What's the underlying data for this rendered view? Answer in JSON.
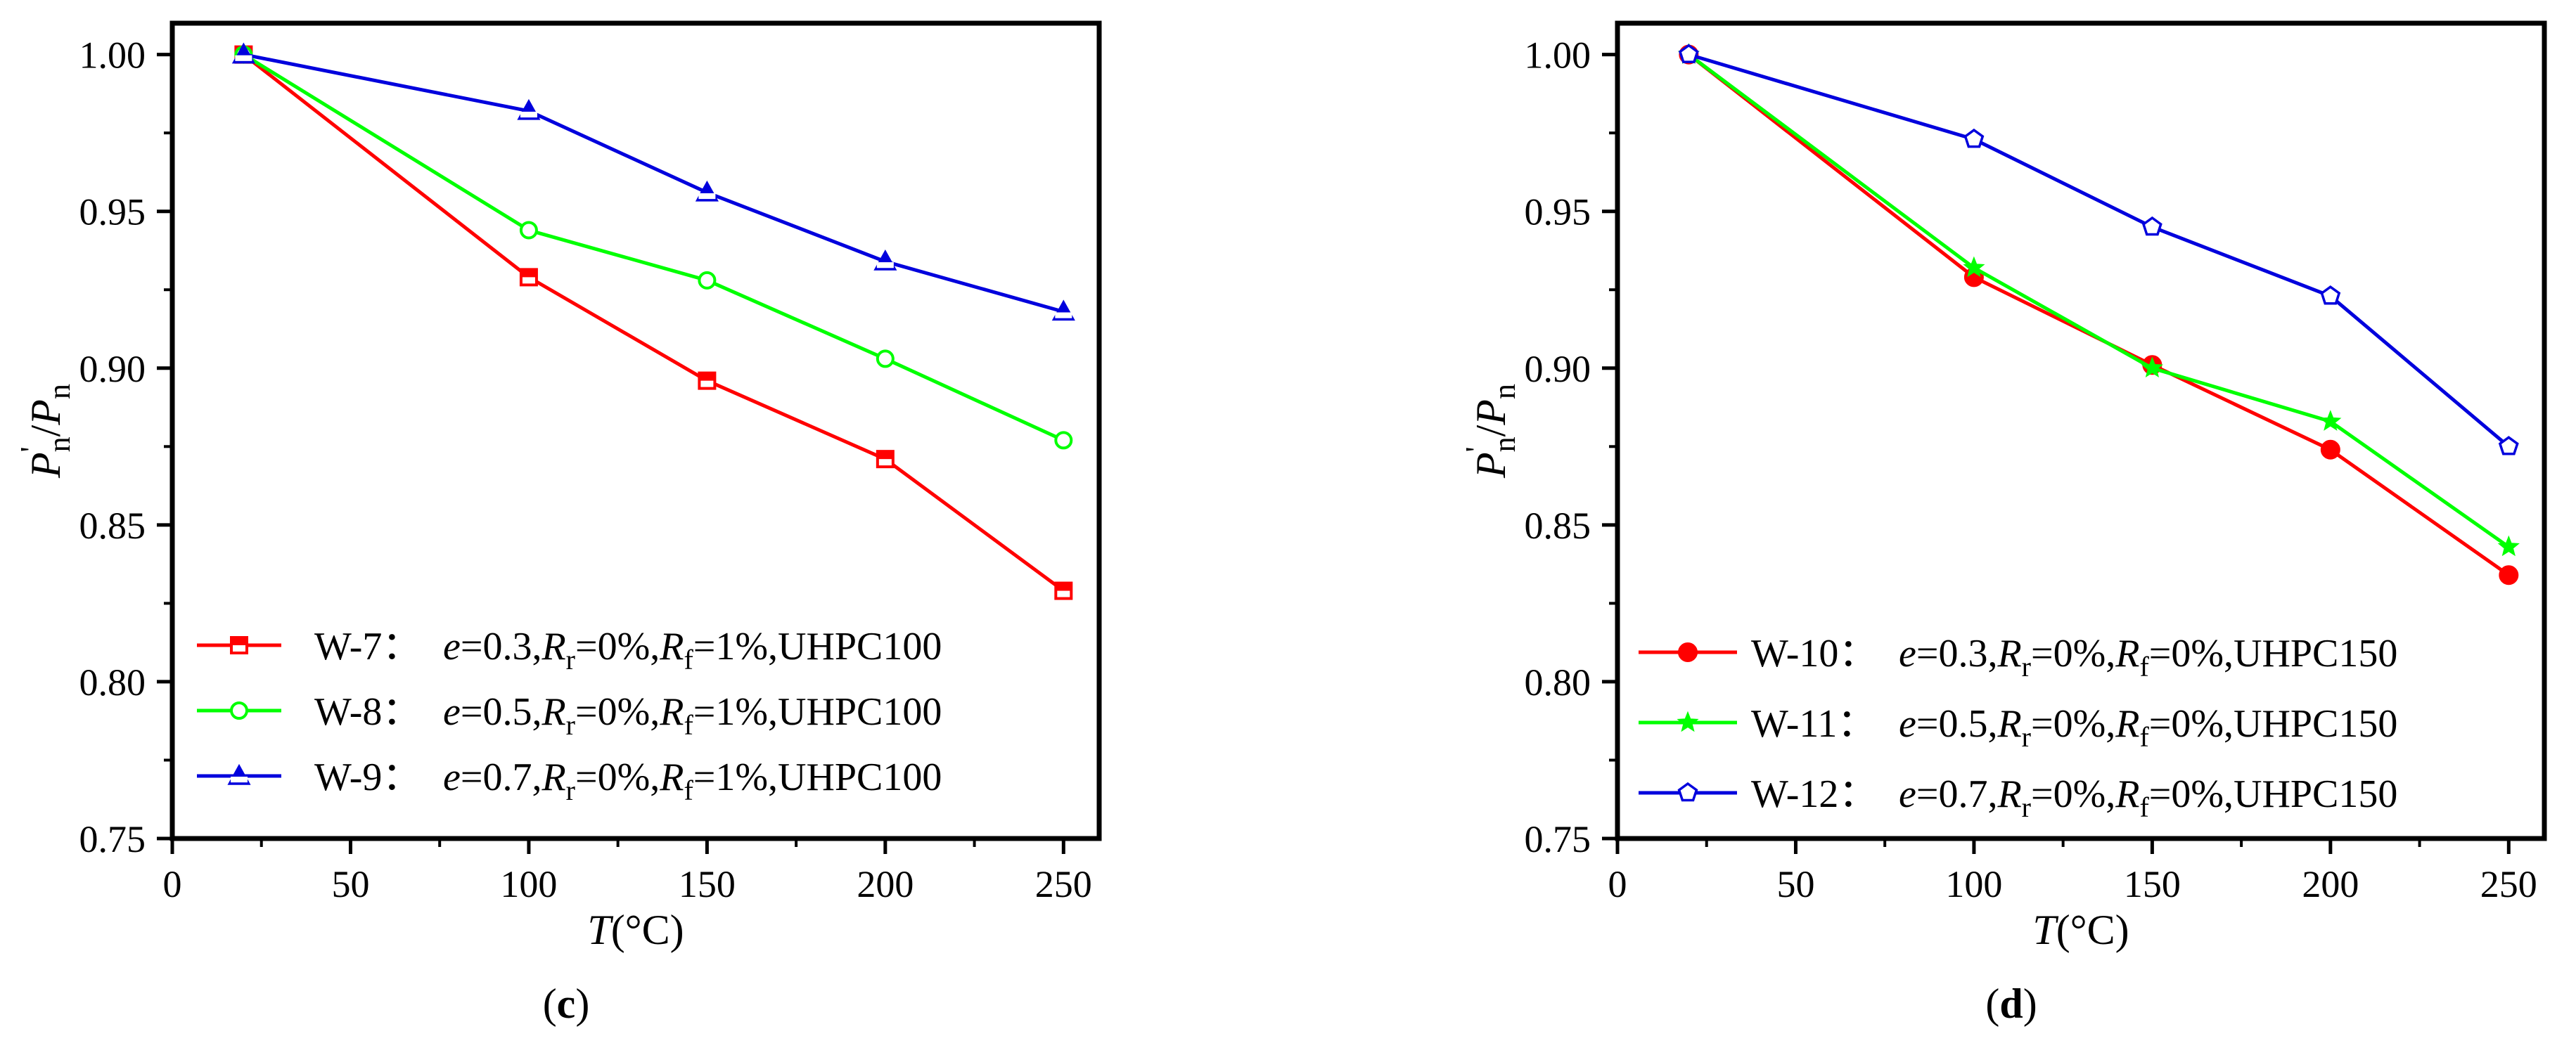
{
  "chart_data": [
    {
      "panel": "(c)",
      "type": "line",
      "xlabel": "T(°C)",
      "ylabel": "P'n/Pn",
      "xlim": [
        0,
        260
      ],
      "ylim": [
        0.75,
        1.01
      ],
      "xticks": [
        "0",
        "50",
        "100",
        "150",
        "200",
        "250"
      ],
      "yticks": [
        "0.75",
        "0.80",
        "0.85",
        "0.90",
        "0.95",
        "1.00"
      ],
      "legend_position": "lower-left",
      "series": [
        {
          "name": "W-7：",
          "detail": "e=0.3,Rr=0%,Rf=1%,UHPC100",
          "e": "0.3",
          "rr": "0%",
          "rf": "1%",
          "mat": "UHPC100",
          "color": "#ff0000",
          "marker": "square-open",
          "x": [
            20,
            100,
            150,
            200,
            250
          ],
          "y": [
            1.0,
            0.929,
            0.896,
            0.871,
            0.829
          ]
        },
        {
          "name": "W-8：",
          "detail": "e=0.5,Rr=0%,Rf=1%,UHPC100",
          "e": "0.5",
          "rr": "0%",
          "rf": "1%",
          "mat": "UHPC100",
          "color": "#00ff00",
          "marker": "circle-open",
          "x": [
            20,
            100,
            150,
            200,
            250
          ],
          "y": [
            1.0,
            0.944,
            0.928,
            0.903,
            0.877
          ]
        },
        {
          "name": "W-9：",
          "detail": "e=0.7,Rr=0%,Rf=1%,UHPC100",
          "e": "0.7",
          "rr": "0%",
          "rf": "1%",
          "mat": "UHPC100",
          "color": "#0000dd",
          "marker": "triangle-half",
          "x": [
            20,
            100,
            150,
            200,
            250
          ],
          "y": [
            1.0,
            0.982,
            0.956,
            0.934,
            0.918
          ]
        }
      ]
    },
    {
      "panel": "(d)",
      "type": "line",
      "xlabel": "T(°C)",
      "ylabel": "P'n/Pn",
      "xlim": [
        0,
        260
      ],
      "ylim": [
        0.75,
        1.01
      ],
      "xticks": [
        "0",
        "50",
        "100",
        "150",
        "200",
        "250"
      ],
      "yticks": [
        "0.75",
        "0.80",
        "0.85",
        "0.90",
        "0.95",
        "1.00"
      ],
      "legend_position": "lower-left",
      "series": [
        {
          "name": "W-10：",
          "detail": "e=0.3,Rr=0%,Rf=0%,UHPC150",
          "e": "0.3",
          "rr": "0%",
          "rf": "0%",
          "mat": "UHPC150",
          "color": "#ff0000",
          "marker": "circle-filled",
          "x": [
            20,
            100,
            150,
            200,
            250
          ],
          "y": [
            1.0,
            0.929,
            0.901,
            0.874,
            0.834
          ]
        },
        {
          "name": "W-11：",
          "detail": "e=0.5,Rr=0%,Rf=0%,UHPC150",
          "e": "0.5",
          "rr": "0%",
          "rf": "0%",
          "mat": "UHPC150",
          "color": "#00ff00",
          "marker": "star-filled",
          "x": [
            20,
            100,
            150,
            200,
            250
          ],
          "y": [
            1.0,
            0.932,
            0.9,
            0.883,
            0.843
          ]
        },
        {
          "name": "W-12：",
          "detail": "e=0.7,Rr=0%,Rf=0%,UHPC150",
          "e": "0.7",
          "rr": "0%",
          "rf": "0%",
          "mat": "UHPC150",
          "color": "#0000dd",
          "marker": "pentagon-open",
          "x": [
            20,
            100,
            150,
            200,
            250
          ],
          "y": [
            1.0,
            0.973,
            0.945,
            0.923,
            0.875
          ]
        }
      ]
    }
  ]
}
